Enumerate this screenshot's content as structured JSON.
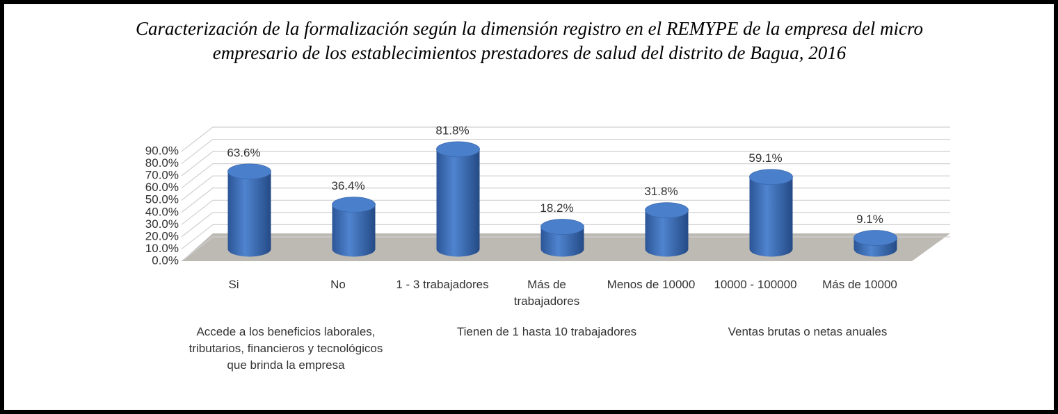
{
  "chart_data": {
    "type": "bar3d",
    "title": "Caracterización de la formalización según la dimensión registro en el REMYPE  de la empresa del micro empresario de los establecimientos prestadores de salud del distrito de Bagua, 2016",
    "groups": [
      {
        "label": "Accede a los beneficios laborales, tributarios, financieros y tecnológicos que brinda la empresa",
        "categories": [
          "Si",
          "No"
        ]
      },
      {
        "label": "Tienen de 1 hasta 10 trabajadores",
        "categories": [
          "1 - 3 trabajadores",
          "Más de trabajadores",
          "Menos de 10000"
        ]
      },
      {
        "label": "Ventas brutas o netas anuales",
        "categories": [
          "10000 - 100000",
          "Más de 10000"
        ]
      }
    ],
    "values": [
      63.6,
      36.4,
      81.8,
      18.2,
      31.8,
      59.1,
      9.1
    ],
    "value_labels": [
      "63.6%",
      "36.4%",
      "81.8%",
      "18.2%",
      "31.8%",
      "59.1%",
      "9.1%"
    ],
    "color": "#4472c4",
    "ylim": [
      0,
      90
    ],
    "yticks": [
      {
        "value": 0,
        "label": "0.0%"
      },
      {
        "value": 10,
        "label": "10.0%"
      },
      {
        "value": 20,
        "label": "20.0%"
      },
      {
        "value": 30,
        "label": "30.0%"
      },
      {
        "value": 40,
        "label": "40.0%"
      },
      {
        "value": 50,
        "label": "50.0%"
      },
      {
        "value": 60,
        "label": "60.0%"
      },
      {
        "value": 70,
        "label": "70.0%"
      },
      {
        "value": 80,
        "label": "80.0%"
      },
      {
        "value": 90,
        "label": "90.0%"
      }
    ],
    "grid": true
  }
}
